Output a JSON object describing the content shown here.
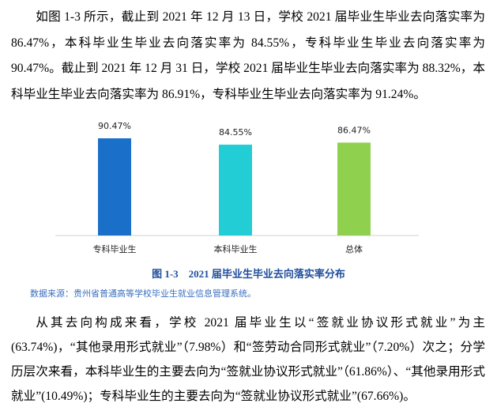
{
  "paragraphs": [
    "如图 1-3 所示，截止到 2021 年 12 月 13 日，学校 2021 届毕业生毕业去向落实率为 86.47%，本科毕业生毕业去向落实率为 84.55%，专科毕业生毕业去向落实率为 90.47%。截止到 2021 年 12 月 31 日，学校 2021 届毕业生毕业去向落实率为 88.32%，本科毕业生毕业去向落实率为 86.91%，专科毕业生毕业去向落实率为 91.24%。",
    "从其去向构成来看，学校 2021 届毕业生以“签就业协议形式就业”为主(63.74%)，“其他录用形式就业”（7.98%）和“签劳动合同形式就业”（7.20%）次之；分学历层次来看，本科毕业生的主要去向为“签就业协议形式就业”（61.86%）、“其他录用形式就业”(10.49%)；专科毕业生的主要去向为“签就业协议形式就业”(67.66%)。"
  ],
  "chart_data": {
    "type": "bar",
    "categories": [
      "专科毕业生",
      "本科毕业生",
      "总体"
    ],
    "values": [
      90.47,
      84.55,
      86.47
    ],
    "value_labels": [
      "90.47%",
      "84.55%",
      "86.47%"
    ],
    "colors": [
      "#1a6fc9",
      "#22cdd6",
      "#8fd14f"
    ]
  },
  "caption": "图 1-3　2021 届毕业生毕业去向落实率分布",
  "source": "数据来源：贵州省普通高等学校毕业生就业信息管理系统。"
}
